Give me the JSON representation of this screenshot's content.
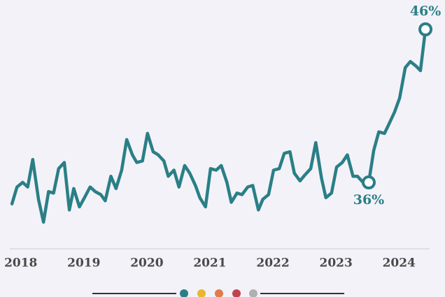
{
  "chart_data": {
    "type": "line",
    "x": [
      2017.86,
      2017.94,
      2018.03,
      2018.11,
      2018.19,
      2018.28,
      2018.36,
      2018.44,
      2018.52,
      2018.6,
      2018.69,
      2018.77,
      2018.84,
      2018.93,
      2019.01,
      2019.1,
      2019.18,
      2019.27,
      2019.34,
      2019.43,
      2019.51,
      2019.6,
      2019.68,
      2019.77,
      2019.84,
      2019.93,
      2020.01,
      2020.1,
      2020.18,
      2020.27,
      2020.34,
      2020.43,
      2020.51,
      2020.6,
      2020.68,
      2020.77,
      2020.84,
      2020.93,
      2021.01,
      2021.1,
      2021.18,
      2021.27,
      2021.34,
      2021.43,
      2021.51,
      2021.6,
      2021.68,
      2021.77,
      2021.84,
      2021.93,
      2022.01,
      2022.1,
      2022.18,
      2022.27,
      2022.34,
      2022.43,
      2022.51,
      2022.6,
      2022.68,
      2022.77,
      2022.84,
      2022.93,
      2023.01,
      2023.1,
      2023.18,
      2023.27,
      2023.34,
      2023.43,
      2023.52,
      2023.6,
      2023.68,
      2023.77,
      2023.84,
      2023.93,
      2024.01,
      2024.1,
      2024.18,
      2024.27,
      2024.34,
      2024.42
    ],
    "values": [
      34.6,
      35.7,
      36.0,
      35.7,
      37.5,
      34.9,
      33.4,
      35.4,
      35.3,
      36.9,
      37.3,
      34.2,
      35.6,
      34.4,
      35.0,
      35.7,
      35.4,
      35.2,
      34.8,
      36.4,
      35.6,
      36.8,
      38.8,
      37.8,
      37.3,
      37.4,
      39.2,
      38.0,
      37.8,
      37.4,
      36.4,
      36.8,
      35.7,
      37.1,
      36.6,
      35.8,
      35.0,
      34.4,
      36.9,
      36.8,
      37.1,
      36.0,
      34.7,
      35.3,
      35.2,
      35.7,
      35.8,
      34.2,
      34.9,
      35.2,
      36.8,
      36.9,
      37.9,
      38.0,
      36.6,
      36.1,
      36.5,
      36.9,
      38.6,
      36.3,
      35.0,
      35.3,
      37.0,
      37.3,
      37.8,
      36.4,
      36.4,
      36.0,
      36,
      38.1,
      39.3,
      39.2,
      39.8,
      40.6,
      41.5,
      43.5,
      43.9,
      43.6,
      43.3,
      46
    ],
    "value_labels": [
      null,
      null,
      null,
      null,
      null,
      null,
      null,
      null,
      null,
      null,
      null,
      null,
      null,
      null,
      null,
      null,
      null,
      null,
      null,
      null,
      null,
      null,
      null,
      null,
      null,
      null,
      null,
      null,
      null,
      null,
      null,
      null,
      null,
      null,
      null,
      null,
      null,
      null,
      null,
      null,
      null,
      null,
      null,
      null,
      null,
      null,
      null,
      null,
      null,
      null,
      null,
      null,
      null,
      null,
      null,
      null,
      null,
      null,
      null,
      null,
      null,
      null,
      null,
      null,
      null,
      null,
      null,
      null,
      "36%",
      null,
      null,
      null,
      null,
      null,
      null,
      null,
      null,
      null,
      null,
      "46%"
    ],
    "color": "#2a7f86",
    "xlim": [
      2017.67,
      2024.73
    ],
    "xticks": [
      2018,
      2019,
      2020,
      2021,
      2022,
      2023,
      2024
    ],
    "ylim": [
      30,
      47
    ]
  }
}
